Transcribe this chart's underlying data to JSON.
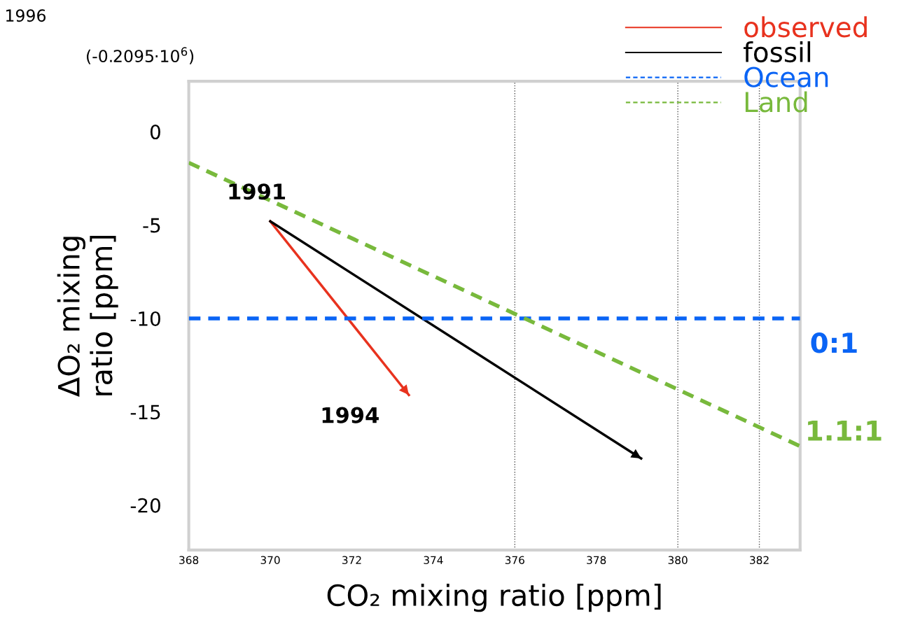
{
  "chart_data": {
    "type": "line",
    "xlabel": "CO₂ mixing ratio [ppm]",
    "ylabel": "ΔO₂ mixing\nratio [ppm]",
    "series": [
      {
        "name": "observed",
        "color": "#e8321e",
        "x": [
          370.0,
          373.4
        ],
        "values": [
          -4.8,
          -14.1
        ],
        "line_style": "solid"
      },
      {
        "name": "fossil",
        "color": "#000000",
        "x": [
          370.0,
          379.1
        ],
        "values": [
          -4.8,
          -17.5
        ],
        "line_style": "solid"
      },
      {
        "name": "Ocean",
        "color": "#0a64f5",
        "x": [
          368,
          383
        ],
        "values": [
          -10,
          -10
        ],
        "line_style": "dashed"
      },
      {
        "name": "Land",
        "color": "#78b93c",
        "x": [
          368,
          383
        ],
        "values": [
          -1.66,
          -16.84
        ],
        "line_style": "dashed"
      }
    ],
    "xlim": [
      368,
      383
    ],
    "ylim": [
      -22.4,
      2.7
    ],
    "xticks": [
      368,
      370,
      372,
      374,
      376,
      378,
      380,
      382
    ],
    "yticks": [
      0,
      -5,
      -10,
      -15,
      -20
    ],
    "ref_lines": [
      {
        "axis": "x",
        "value": 376,
        "color": "#555555",
        "line_style": "dotted"
      },
      {
        "axis": "x",
        "value": 380,
        "color": "#555555",
        "line_style": "dotted"
      },
      {
        "axis": "x",
        "value": 382,
        "color": "#555555",
        "line_style": "dotted"
      }
    ],
    "annotations": [
      {
        "text": "1991",
        "x": 370.0,
        "y": -4.8
      },
      {
        "text": "1994",
        "x": 373.4,
        "y": -14.1
      },
      {
        "text": "0:1",
        "x": 383,
        "y": -10
      },
      {
        "text": "1.1:1",
        "x": 383,
        "y": -16.84
      },
      "(-0.2095·10$^{6}$)",
      "1996"
    ],
    "legend": "top right",
    "grid": false
  }
}
